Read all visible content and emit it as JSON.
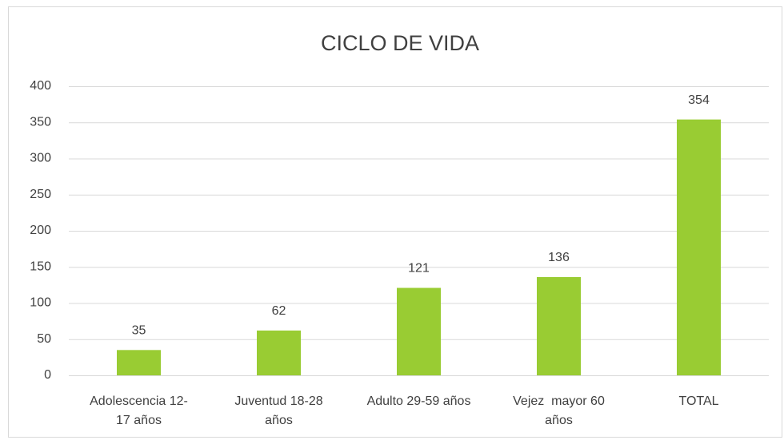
{
  "chart_data": {
    "type": "bar",
    "title": "CICLO DE VIDA",
    "categories": [
      "Adolescencia 12-17 años",
      "Juventud 18-28 años",
      "Adulto 29-59 años",
      "Vejez  mayor 60 años",
      "TOTAL"
    ],
    "values": [
      35,
      62,
      121,
      136,
      354
    ],
    "color": "#99cc33",
    "ylim": [
      0,
      400
    ],
    "yticks": [
      0,
      50,
      100,
      150,
      200,
      250,
      300,
      350,
      400
    ],
    "grid": true
  }
}
